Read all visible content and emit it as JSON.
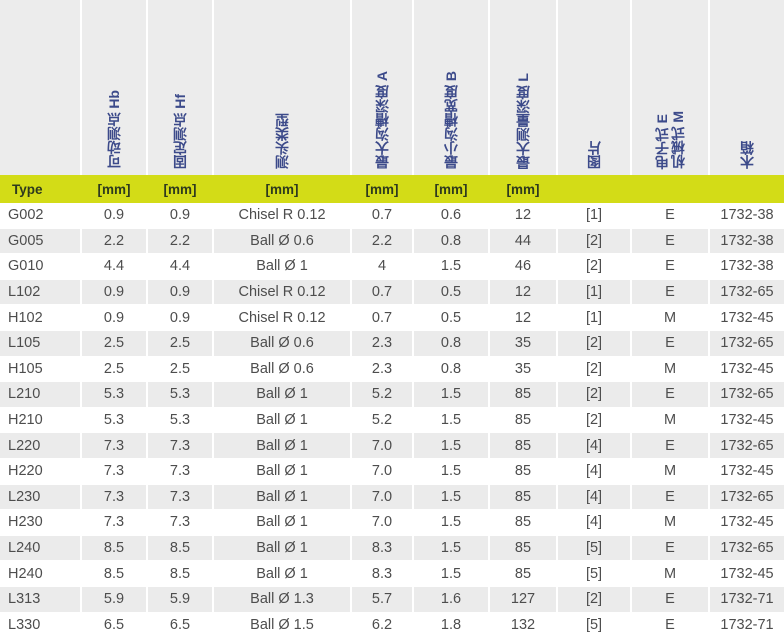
{
  "headers": {
    "col0": "",
    "col1": "可动测点 Hb",
    "col2": "固定测点 Hf",
    "col3": "测头类型",
    "col4": "最大沟槽深度 A",
    "col5": "最小沟槽宽度 B",
    "col6": "最大测量深度 L",
    "col7": "图片",
    "col8_line1": "电子式 E",
    "col8_line2": "机械式 M",
    "col9": "木箱"
  },
  "units": [
    "Type",
    "[mm]",
    "[mm]",
    "[mm]",
    "[mm]",
    "[mm]",
    "[mm]",
    "",
    "",
    ""
  ],
  "rows": [
    [
      "G002",
      "0.9",
      "0.9",
      "Chisel R 0.12",
      "0.7",
      "0.6",
      "12",
      "[1]",
      "E",
      "1732-38"
    ],
    [
      "G005",
      "2.2",
      "2.2",
      "Ball Ø 0.6",
      "2.2",
      "0.8",
      "44",
      "[2]",
      "E",
      "1732-38"
    ],
    [
      "G010",
      "4.4",
      "4.4",
      "Ball Ø 1",
      "4",
      "1.5",
      "46",
      "[2]",
      "E",
      "1732-38"
    ],
    [
      "L102",
      "0.9",
      "0.9",
      "Chisel R 0.12",
      "0.7",
      "0.5",
      "12",
      "[1]",
      "E",
      "1732-65"
    ],
    [
      "H102",
      "0.9",
      "0.9",
      "Chisel R 0.12",
      "0.7",
      "0.5",
      "12",
      "[1]",
      "M",
      "1732-45"
    ],
    [
      "L105",
      "2.5",
      "2.5",
      "Ball Ø 0.6",
      "2.3",
      "0.8",
      "35",
      "[2]",
      "E",
      "1732-65"
    ],
    [
      "H105",
      "2.5",
      "2.5",
      "Ball Ø 0.6",
      "2.3",
      "0.8",
      "35",
      "[2]",
      "M",
      "1732-45"
    ],
    [
      "L210",
      "5.3",
      "5.3",
      "Ball Ø 1",
      "5.2",
      "1.5",
      "85",
      "[2]",
      "E",
      "1732-65"
    ],
    [
      "H210",
      "5.3",
      "5.3",
      "Ball Ø 1",
      "5.2",
      "1.5",
      "85",
      "[2]",
      "M",
      "1732-45"
    ],
    [
      "L220",
      "7.3",
      "7.3",
      "Ball Ø 1",
      "7.0",
      "1.5",
      "85",
      "[4]",
      "E",
      "1732-65"
    ],
    [
      "H220",
      "7.3",
      "7.3",
      "Ball Ø 1",
      "7.0",
      "1.5",
      "85",
      "[4]",
      "M",
      "1732-45"
    ],
    [
      "L230",
      "7.3",
      "7.3",
      "Ball Ø 1",
      "7.0",
      "1.5",
      "85",
      "[4]",
      "E",
      "1732-65"
    ],
    [
      "H230",
      "7.3",
      "7.3",
      "Ball Ø 1",
      "7.0",
      "1.5",
      "85",
      "[4]",
      "M",
      "1732-45"
    ],
    [
      "L240",
      "8.5",
      "8.5",
      "Ball Ø 1",
      "8.3",
      "1.5",
      "85",
      "[5]",
      "E",
      "1732-65"
    ],
    [
      "H240",
      "8.5",
      "8.5",
      "Ball Ø 1",
      "8.3",
      "1.5",
      "85",
      "[5]",
      "M",
      "1732-45"
    ],
    [
      "L313",
      "5.9",
      "5.9",
      "Ball Ø 1.3",
      "5.7",
      "1.6",
      "127",
      "[2]",
      "E",
      "1732-71"
    ],
    [
      "L330",
      "6.5",
      "6.5",
      "Ball Ø 1.5",
      "6.2",
      "1.8",
      "132",
      "[5]",
      "E",
      "1732-71"
    ]
  ],
  "colors": {
    "header_bg": "#ececec",
    "header_text": "#3c4a8a",
    "units_bar": "#d3dc17",
    "row_alt": "#ebebeb"
  }
}
